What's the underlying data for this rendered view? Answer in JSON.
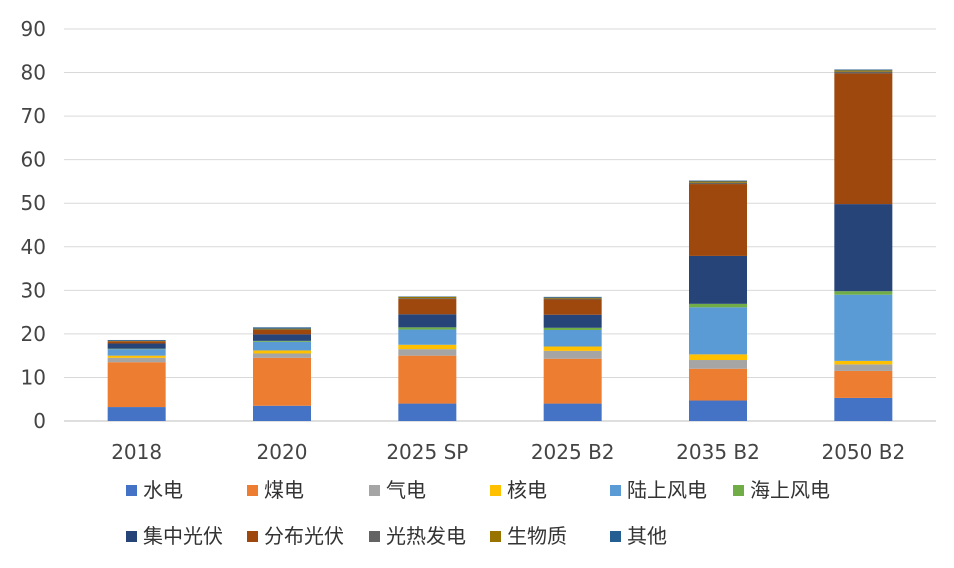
{
  "chart_data": {
    "type": "bar",
    "stacked": true,
    "title": "",
    "xlabel": "",
    "ylabel": "",
    "ylim": [
      0,
      90
    ],
    "yticks": [
      0,
      10,
      20,
      30,
      40,
      50,
      60,
      70,
      80,
      90
    ],
    "grid": true,
    "legend_position": "bottom",
    "categories": [
      "2018",
      "2020",
      "2025 SP",
      "2025 B2",
      "2035 B2",
      "2050 B2"
    ],
    "series": [
      {
        "name": "水电",
        "color": "#4472C4",
        "values": [
          3.2,
          3.5,
          4.0,
          4.0,
          4.7,
          5.3
        ]
      },
      {
        "name": "煤电",
        "color": "#ED7D31",
        "values": [
          10.3,
          11.0,
          11.0,
          10.3,
          7.3,
          6.2
        ]
      },
      {
        "name": "气电",
        "color": "#A5A5A5",
        "values": [
          1.0,
          1.0,
          1.5,
          1.8,
          2.0,
          1.5
        ]
      },
      {
        "name": "核电",
        "color": "#FFC000",
        "values": [
          0.5,
          0.7,
          1.0,
          1.0,
          1.3,
          0.8
        ]
      },
      {
        "name": "陆上风电",
        "color": "#5B9BD5",
        "values": [
          1.5,
          2.0,
          3.5,
          3.8,
          10.8,
          15.2
        ]
      },
      {
        "name": "海上风电",
        "color": "#70AD47",
        "values": [
          0.1,
          0.2,
          0.5,
          0.5,
          0.8,
          0.8
        ]
      },
      {
        "name": "集中光伏",
        "color": "#264478",
        "values": [
          1.2,
          1.5,
          3.0,
          3.0,
          11.0,
          20.0
        ]
      },
      {
        "name": "分布光伏",
        "color": "#9E480E",
        "values": [
          0.5,
          1.0,
          3.5,
          3.5,
          16.5,
          30.0
        ]
      },
      {
        "name": "光热发电",
        "color": "#636363",
        "values": [
          0.0,
          0.1,
          0.2,
          0.2,
          0.3,
          0.4
        ]
      },
      {
        "name": "生物质",
        "color": "#997300",
        "values": [
          0.1,
          0.2,
          0.3,
          0.2,
          0.3,
          0.3
        ]
      },
      {
        "name": "其他",
        "color": "#255E91",
        "values": [
          0.2,
          0.3,
          0.1,
          0.2,
          0.2,
          0.2
        ]
      }
    ]
  }
}
